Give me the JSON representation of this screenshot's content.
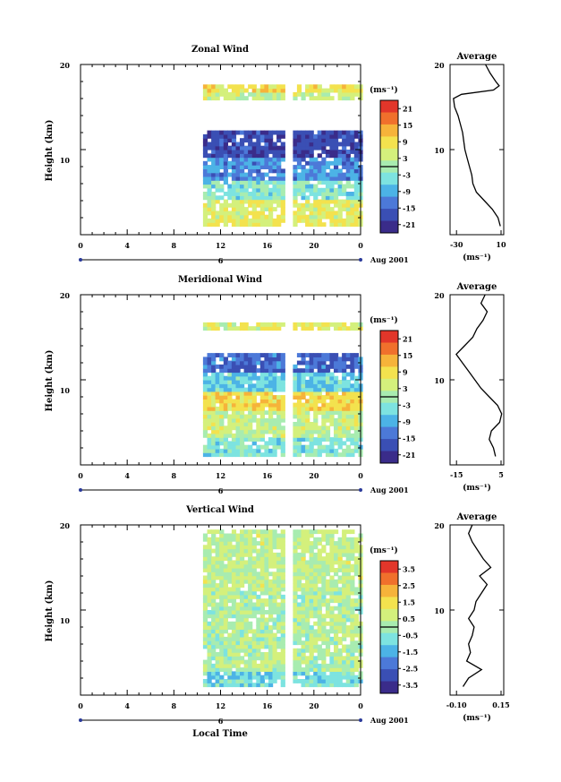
{
  "x_ticks": [
    "0",
    "4",
    "8",
    "12",
    "16",
    "20",
    "0"
  ],
  "date_marker": "6",
  "date_label": "Aug 2001",
  "x_axis_title": "Local Time",
  "y_axis_title": "Height (km)",
  "y_ticks": [
    "10",
    "20"
  ],
  "units_label": "(ms⁻¹)",
  "average_title": "Average",
  "colormap": [
    "#3a2c8a",
    "#3a4fb4",
    "#4c79d8",
    "#4cb3e6",
    "#7de3e0",
    "#a8ecb0",
    "#d4f07c",
    "#f3e24e",
    "#f6b33a",
    "#f0702c",
    "#e2362a"
  ],
  "chart_data": [
    {
      "type": "heatmap",
      "title": "Zonal Wind",
      "xlabel": "",
      "ylabel": "Height (km)",
      "xlim": [
        0,
        24
      ],
      "ylim": [
        0,
        20
      ],
      "data_span": [
        10.5,
        24
      ],
      "gap": [
        17.3,
        18.2
      ],
      "colorbar": {
        "ticks": [
          "21",
          "15",
          "9",
          "3",
          "-3",
          "-9",
          "-15",
          "-21"
        ],
        "range": [
          -24,
          24
        ]
      },
      "profile_layers": [
        {
          "z": [
            1,
            4
          ],
          "value": 6
        },
        {
          "z": [
            4,
            6
          ],
          "value": -3
        },
        {
          "z": [
            6,
            9
          ],
          "value": -12
        },
        {
          "z": [
            9,
            12
          ],
          "value": -18
        },
        {
          "z": [
            15.5,
            16.5
          ],
          "value": 3
        },
        {
          "z": [
            16.5,
            17.5
          ],
          "value": 9
        }
      ],
      "average": {
        "title": "Average",
        "xlim": [
          -35,
          12
        ],
        "xticks": [
          "-30",
          "10"
        ],
        "xlabel": "(ms⁻¹)",
        "z": [
          1,
          2,
          3,
          4,
          5,
          6,
          7,
          8,
          9,
          10,
          11,
          12,
          13,
          14,
          15,
          16,
          16.5,
          17,
          17.5,
          18,
          19,
          20
        ],
        "v": [
          9,
          7,
          2,
          -5,
          -12,
          -15,
          -16,
          -18,
          -20,
          -22,
          -23,
          -24,
          -26,
          -28,
          -31,
          -32,
          -25,
          3,
          8,
          5,
          0,
          -4
        ]
      }
    },
    {
      "type": "heatmap",
      "title": "Meridional Wind",
      "xlabel": "",
      "ylabel": "Height (km)",
      "xlim": [
        0,
        24
      ],
      "ylim": [
        0,
        20
      ],
      "data_span": [
        10.5,
        24
      ],
      "gap": [
        17.3,
        18.2
      ],
      "colorbar": {
        "ticks": [
          "21",
          "15",
          "9",
          "3",
          "-3",
          "-9",
          "-15",
          "-21"
        ],
        "range": [
          -24,
          24
        ]
      },
      "profile_layers": [
        {
          "z": [
            1,
            3
          ],
          "value": -3
        },
        {
          "z": [
            3,
            6
          ],
          "value": 3
        },
        {
          "z": [
            6,
            8.5
          ],
          "value": 9
        },
        {
          "z": [
            8.5,
            10.5
          ],
          "value": -6
        },
        {
          "z": [
            10.5,
            13
          ],
          "value": -15
        },
        {
          "z": [
            15.5,
            16.5
          ],
          "value": 6
        }
      ],
      "average": {
        "title": "Average",
        "xlim": [
          -18,
          8
        ],
        "xticks": [
          "-15",
          "5"
        ],
        "xlabel": "(ms⁻¹)",
        "z": [
          1,
          2,
          3,
          4,
          5,
          6,
          7,
          8,
          9,
          10,
          11,
          12,
          13,
          14,
          15,
          16,
          17,
          18,
          19,
          20
        ],
        "v": [
          4,
          3,
          1,
          2,
          6,
          7,
          5,
          1,
          -3,
          -6,
          -9,
          -12,
          -15,
          -11,
          -7,
          -5,
          -2,
          0,
          -3,
          -1
        ]
      }
    },
    {
      "type": "heatmap",
      "title": "Vertical Wind",
      "xlabel": "Local Time",
      "ylabel": "Height (km)",
      "xlim": [
        0,
        24
      ],
      "ylim": [
        0,
        20
      ],
      "data_span": [
        10.5,
        24
      ],
      "gap": [
        17.3,
        18.2
      ],
      "colorbar": {
        "ticks": [
          "3.5",
          "2.5",
          "1.5",
          "0.5",
          "-0.5",
          "-1.5",
          "-2.5",
          "-3.5"
        ],
        "range": [
          -4,
          4
        ]
      },
      "profile_layers": [
        {
          "z": [
            1,
            2.5
          ],
          "value": -0.8
        },
        {
          "z": [
            2.5,
            12
          ],
          "value": 0.2
        },
        {
          "z": [
            12,
            19
          ],
          "value": 0.4
        }
      ],
      "average": {
        "title": "Average",
        "xlim": [
          -0.12,
          0.17
        ],
        "xticks": [
          "-0.10",
          "0.15"
        ],
        "xlabel": "(ms⁻¹)",
        "z": [
          1,
          2,
          3,
          4,
          5,
          6,
          7,
          8,
          9,
          10,
          11,
          12,
          13,
          14,
          15,
          16,
          17,
          18,
          19,
          20
        ],
        "v": [
          -0.05,
          -0.02,
          0.05,
          -0.03,
          -0.01,
          -0.02,
          0.0,
          0.01,
          -0.02,
          0.01,
          0.02,
          0.05,
          0.08,
          0.04,
          0.1,
          0.06,
          0.03,
          0.0,
          -0.02,
          0.0
        ]
      }
    }
  ]
}
